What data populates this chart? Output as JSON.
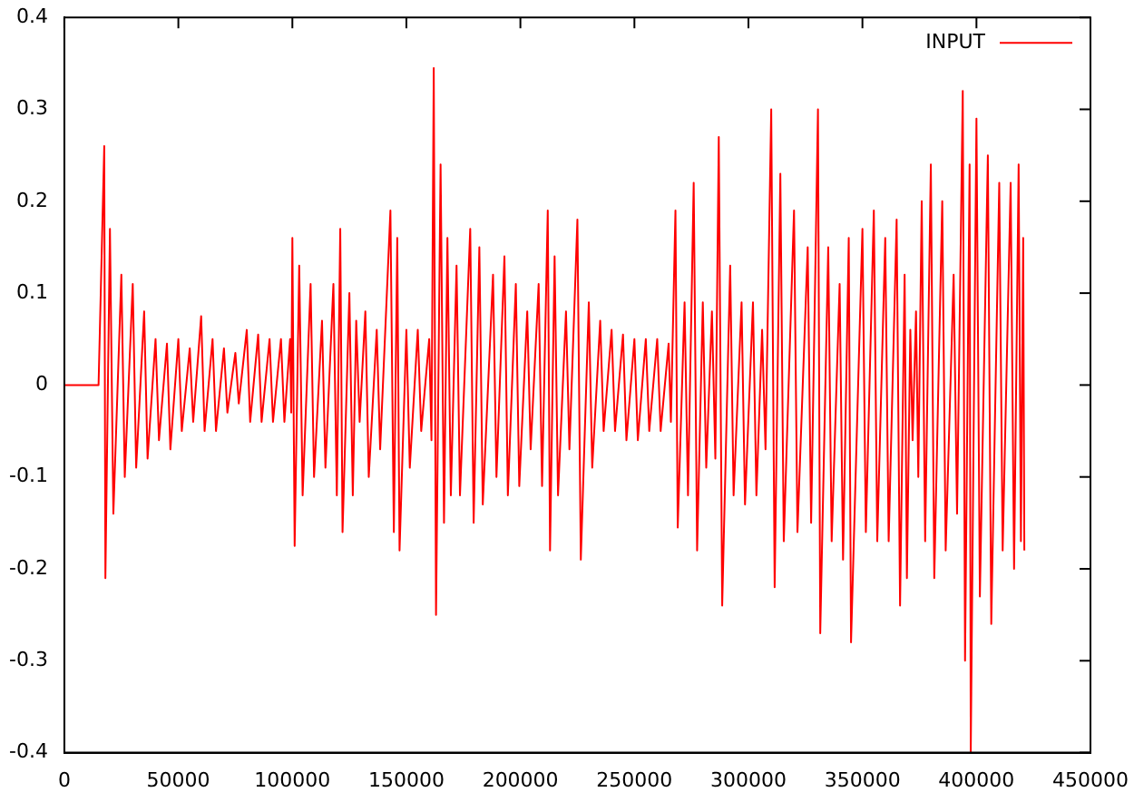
{
  "chart_data": {
    "type": "line",
    "xlim": [
      0,
      450000
    ],
    "ylim": [
      -0.4,
      0.4
    ],
    "xticks": [
      0,
      50000,
      100000,
      150000,
      200000,
      250000,
      300000,
      350000,
      400000,
      450000
    ],
    "yticks": [
      -0.4,
      -0.3,
      -0.2,
      -0.1,
      0,
      0.1,
      0.2,
      0.3,
      0.4
    ],
    "grid": false,
    "legend": "top right",
    "marker": "none",
    "line_style": "solid",
    "series": [
      {
        "name": "INPUT",
        "color": "#ff0000",
        "x": [
          0,
          15000,
          17500,
          18000,
          20000,
          21500,
          25000,
          26500,
          30000,
          31500,
          35000,
          36500,
          40000,
          41500,
          45000,
          46500,
          50000,
          51500,
          55000,
          56500,
          60000,
          61500,
          65000,
          66500,
          70000,
          71500,
          75000,
          76500,
          80000,
          81500,
          85000,
          86500,
          90000,
          91500,
          95000,
          96500,
          99000,
          99500,
          100000,
          101000,
          103000,
          104500,
          108000,
          109500,
          113000,
          114500,
          118000,
          119500,
          121000,
          122000,
          125000,
          126500,
          128000,
          129500,
          132000,
          133500,
          137000,
          138500,
          143000,
          144500,
          146000,
          147000,
          150000,
          151500,
          155000,
          156500,
          160000,
          161000,
          162000,
          163000,
          165000,
          166500,
          168000,
          169500,
          172000,
          173500,
          178000,
          179500,
          182000,
          183500,
          188000,
          189500,
          193000,
          194500,
          198000,
          199500,
          203000,
          204500,
          208000,
          209500,
          212000,
          213000,
          215000,
          216500,
          220000,
          221500,
          225000,
          226500,
          230000,
          231500,
          235000,
          236500,
          240000,
          241500,
          245000,
          246500,
          250000,
          251500,
          255000,
          256500,
          260000,
          261500,
          265000,
          266000,
          268000,
          269000,
          272000,
          273500,
          276000,
          277500,
          280000,
          281500,
          284000,
          285500,
          287000,
          288500,
          292000,
          293500,
          297000,
          298500,
          302000,
          303500,
          306000,
          307500,
          310000,
          311500,
          314000,
          315500,
          320000,
          321500,
          326000,
          327500,
          330500,
          331500,
          335000,
          336500,
          340000,
          341500,
          344000,
          345000,
          350000,
          351500,
          355000,
          356500,
          360000,
          361500,
          365000,
          366500,
          368500,
          369500,
          371000,
          372000,
          373500,
          374500,
          376000,
          377500,
          380000,
          381500,
          385000,
          386500,
          390000,
          391500,
          394000,
          395000,
          397000,
          397500,
          400000,
          401500,
          405000,
          406500,
          410000,
          411500,
          415000,
          416500,
          418500,
          419500,
          420500,
          421000
        ],
        "values": [
          0,
          0,
          0.26,
          -0.21,
          0.17,
          -0.14,
          0.12,
          -0.1,
          0.11,
          -0.09,
          0.08,
          -0.08,
          0.05,
          -0.06,
          0.045,
          -0.07,
          0.05,
          -0.05,
          0.04,
          -0.04,
          0.075,
          -0.05,
          0.05,
          -0.05,
          0.04,
          -0.03,
          0.035,
          -0.02,
          0.06,
          -0.04,
          0.055,
          -0.04,
          0.05,
          -0.04,
          0.05,
          -0.04,
          0.05,
          -0.03,
          0.16,
          -0.175,
          0.13,
          -0.12,
          0.11,
          -0.1,
          0.07,
          -0.09,
          0.11,
          -0.12,
          0.17,
          -0.16,
          0.1,
          -0.12,
          0.07,
          -0.04,
          0.08,
          -0.1,
          0.06,
          -0.07,
          0.19,
          -0.16,
          0.16,
          -0.18,
          0.06,
          -0.09,
          0.06,
          -0.05,
          0.05,
          -0.06,
          0.345,
          -0.25,
          0.24,
          -0.15,
          0.16,
          -0.12,
          0.13,
          -0.12,
          0.17,
          -0.15,
          0.15,
          -0.13,
          0.12,
          -0.1,
          0.14,
          -0.12,
          0.11,
          -0.11,
          0.08,
          -0.07,
          0.11,
          -0.11,
          0.19,
          -0.18,
          0.14,
          -0.12,
          0.08,
          -0.07,
          0.18,
          -0.19,
          0.09,
          -0.09,
          0.07,
          -0.05,
          0.06,
          -0.05,
          0.055,
          -0.06,
          0.05,
          -0.06,
          0.05,
          -0.05,
          0.05,
          -0.05,
          0.045,
          -0.04,
          0.19,
          -0.155,
          0.09,
          -0.12,
          0.22,
          -0.18,
          0.09,
          -0.09,
          0.08,
          -0.08,
          0.27,
          -0.24,
          0.13,
          -0.12,
          0.09,
          -0.13,
          0.09,
          -0.12,
          0.06,
          -0.07,
          0.3,
          -0.22,
          0.23,
          -0.17,
          0.19,
          -0.16,
          0.15,
          -0.15,
          0.3,
          -0.27,
          0.15,
          -0.17,
          0.11,
          -0.19,
          0.16,
          -0.28,
          0.17,
          -0.16,
          0.19,
          -0.17,
          0.16,
          -0.17,
          0.18,
          -0.24,
          0.12,
          -0.21,
          0.06,
          -0.06,
          0.08,
          -0.1,
          0.2,
          -0.17,
          0.24,
          -0.21,
          0.2,
          -0.18,
          0.12,
          -0.14,
          0.32,
          -0.3,
          0.24,
          -0.4,
          0.29,
          -0.23,
          0.25,
          -0.26,
          0.22,
          -0.18,
          0.22,
          -0.2,
          0.24,
          -0.17,
          0.16,
          -0.18
        ]
      }
    ]
  }
}
